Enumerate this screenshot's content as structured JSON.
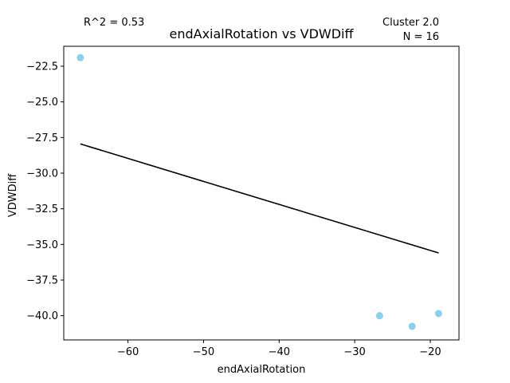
{
  "chart_data": {
    "type": "scatter",
    "title": "endAxialRotation vs VDWDiff",
    "xlabel": "endAxialRotation",
    "ylabel": "VDWDiff",
    "annotations": {
      "r2": "R^2 = 0.53",
      "cluster": "Cluster 2.0",
      "n": "N = 16"
    },
    "xlim": [
      -68.5,
      -16.2
    ],
    "ylim": [
      -41.7,
      -21.1
    ],
    "xticks": [
      -60,
      -50,
      -40,
      -30,
      -20
    ],
    "xtick_labels": [
      "−60",
      "−50",
      "−40",
      "−30",
      "−20"
    ],
    "yticks": [
      -22.5,
      -25.0,
      -27.5,
      -30.0,
      -32.5,
      -35.0,
      -37.5,
      -40.0
    ],
    "ytick_labels": [
      "−22.5",
      "−25.0",
      "−27.5",
      "−30.0",
      "−32.5",
      "−35.0",
      "−37.5",
      "−40.0"
    ],
    "points": [
      {
        "x": -66.3,
        "y": -21.9
      },
      {
        "x": -26.7,
        "y": -40.0
      },
      {
        "x": -22.4,
        "y": -40.75
      },
      {
        "x": -18.9,
        "y": -39.85
      }
    ],
    "fit_line": {
      "x1": -66.3,
      "y1": -27.95,
      "x2": -18.9,
      "y2": -35.6
    },
    "colors": {
      "points": "#89cff0",
      "line": "#000000"
    }
  }
}
